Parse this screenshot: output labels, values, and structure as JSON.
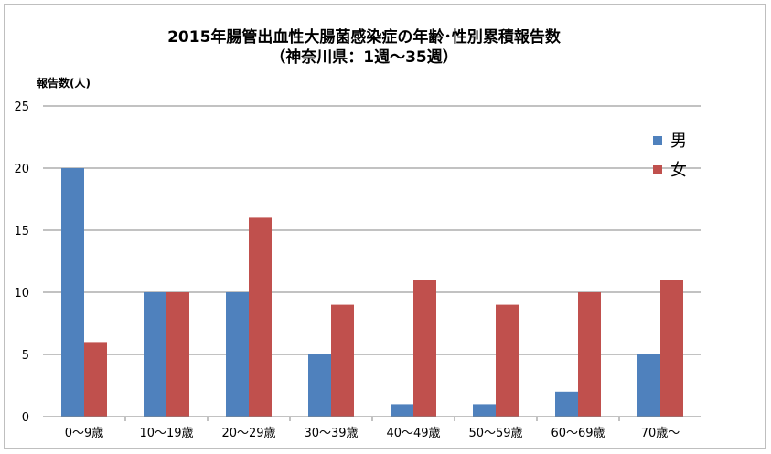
{
  "chart_data": {
    "type": "bar",
    "title": "2015年腸管出血性大腸菌感染症の年齢･性別累積報告数",
    "subtitle": "（神奈川県：1週～35週）",
    "ylabel": "報告数(人)",
    "xlabel": "",
    "categories": [
      "0～9歳",
      "10～19歳",
      "20～29歳",
      "30～39歳",
      "40～49歳",
      "50～59歳",
      "60～69歳",
      "70歳～"
    ],
    "series": [
      {
        "name": "男",
        "color": "#4F81BD",
        "values": [
          20,
          10,
          10,
          5,
          1,
          1,
          2,
          5
        ]
      },
      {
        "name": "女",
        "color": "#C0504D",
        "values": [
          6,
          10,
          16,
          9,
          11,
          9,
          10,
          11
        ]
      }
    ],
    "ylim": [
      0,
      25
    ],
    "yticks": [
      0,
      5,
      10,
      15,
      20,
      25
    ],
    "grid": true,
    "legend_position": "right"
  }
}
